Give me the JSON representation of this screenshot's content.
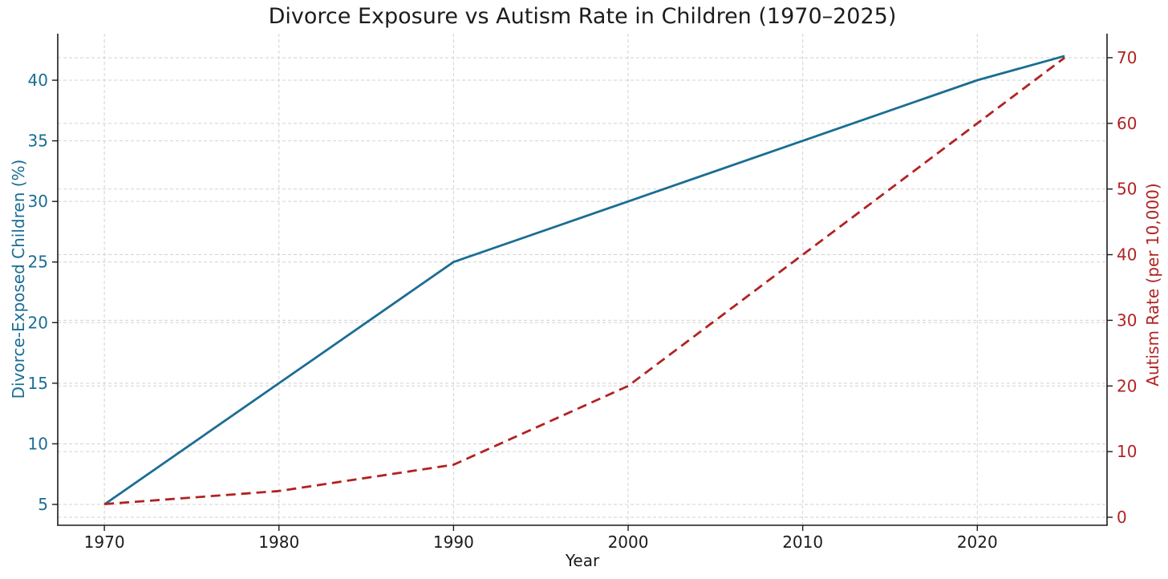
{
  "chart_data": {
    "type": "line",
    "title": "Divorce Exposure vs Autism Rate in Children (1970–2025)",
    "x": [
      1970,
      1980,
      1990,
      2000,
      2010,
      2020,
      2025
    ],
    "series": [
      {
        "name": "Divorce-Exposed Children (%)",
        "axis": "left",
        "color": "#1b6d94",
        "line_style": "solid",
        "values": [
          5,
          15,
          25,
          30,
          35,
          40,
          42
        ]
      },
      {
        "name": "Autism Rate (per 10,000)",
        "axis": "right",
        "color": "#b22222",
        "line_style": "dashed",
        "values": [
          2,
          4,
          8,
          20,
          40,
          60,
          70
        ]
      }
    ],
    "x_axis": {
      "label": "Year",
      "ticks": [
        1970,
        1980,
        1990,
        2000,
        2010,
        2020
      ],
      "lim": [
        1967.33,
        2027.43
      ],
      "color": "#1c1c1c"
    },
    "left_axis": {
      "label": "Divorce-Exposed Children (%)",
      "ticks": [
        5,
        10,
        15,
        20,
        25,
        30,
        35,
        40
      ],
      "lim": [
        3.28,
        43.84
      ],
      "color": "#1b6d94"
    },
    "right_axis": {
      "label": "Autism Rate (per 10,000)",
      "ticks": [
        0,
        10,
        20,
        30,
        40,
        50,
        60,
        70
      ],
      "lim": [
        -1.22,
        73.66
      ],
      "color": "#b22222"
    },
    "grid": true,
    "grid_color": "#d2d2d2",
    "spine_color": "#1a1a1a",
    "background": "#ffffff",
    "legend": "none"
  }
}
